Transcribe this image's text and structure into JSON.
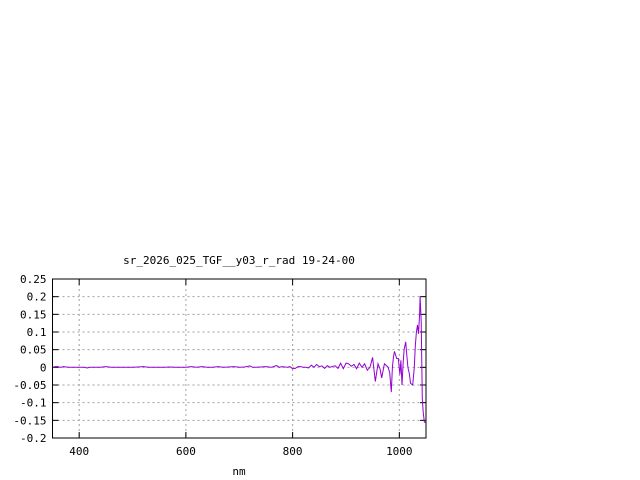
{
  "chart_data": {
    "type": "line",
    "title": "sr_2026_025_TGF__y03_r_rad 19-24-00",
    "xlabel": "nm",
    "ylabel": "",
    "xlim": [
      350,
      1050
    ],
    "ylim": [
      -0.2,
      0.25
    ],
    "xticks": [
      400,
      600,
      800,
      1000
    ],
    "xtick_labels": [
      "400",
      "600",
      "800",
      "1000"
    ],
    "yticks": [
      -0.2,
      -0.15,
      -0.1,
      -0.05,
      0,
      0.05,
      0.1,
      0.15,
      0.2,
      0.25
    ],
    "ytick_labels": [
      "-0.2",
      "-0.15",
      "-0.1",
      "-0.05",
      "0",
      "0.05",
      "0.1",
      "0.15",
      "0.2",
      "0.25"
    ],
    "grid": true,
    "legend": "none",
    "series": [
      {
        "color": "#9400d3",
        "x": [
          350,
          355,
          360,
          365,
          370,
          380,
          390,
          400,
          410,
          415,
          420,
          430,
          440,
          450,
          460,
          470,
          480,
          490,
          500,
          510,
          520,
          530,
          540,
          550,
          560,
          570,
          580,
          590,
          600,
          610,
          620,
          630,
          640,
          650,
          660,
          670,
          680,
          690,
          700,
          710,
          720,
          725,
          730,
          740,
          750,
          760,
          770,
          775,
          780,
          790,
          795,
          800,
          805,
          810,
          815,
          820,
          825,
          830,
          835,
          840,
          845,
          850,
          855,
          860,
          865,
          870,
          875,
          880,
          885,
          890,
          895,
          900,
          905,
          910,
          915,
          920,
          925,
          930,
          935,
          940,
          945,
          950,
          955,
          960,
          964,
          967,
          972,
          976,
          979,
          982,
          985,
          987,
          989,
          991,
          993,
          995,
          998,
          1001,
          1003,
          1005,
          1007,
          1009,
          1012,
          1014,
          1016,
          1019,
          1021,
          1025,
          1028,
          1030,
          1032,
          1034,
          1036,
          1038,
          1039,
          1041,
          1043,
          1045,
          1047,
          1050
        ],
        "y": [
          0.0,
          0.002,
          0.002,
          0.0,
          0.002,
          0.0,
          0.0,
          0.0,
          0.0,
          -0.002,
          0.0,
          0.0,
          0.0,
          0.002,
          0.0,
          0.0,
          0.0,
          0.0,
          0.0,
          0.001,
          0.002,
          0.0,
          0.0,
          0.0,
          0.0,
          0.001,
          0.0,
          0.0,
          0.0,
          0.002,
          0.0,
          0.002,
          0.0,
          0.0,
          0.002,
          0.0,
          0.001,
          0.002,
          0.0,
          0.001,
          0.004,
          0.0,
          0.0,
          0.001,
          0.002,
          0.0,
          0.005,
          0.0,
          0.002,
          0.0,
          0.002,
          -0.004,
          -0.003,
          0.002,
          0.002,
          0.0,
          0.0,
          -0.002,
          0.006,
          0.0,
          0.008,
          0.002,
          0.004,
          -0.003,
          0.005,
          0.0,
          0.003,
          0.004,
          -0.003,
          0.012,
          -0.004,
          0.012,
          0.01,
          0.003,
          0.008,
          -0.004,
          0.012,
          0.0,
          0.01,
          -0.008,
          0.0,
          0.028,
          -0.04,
          0.01,
          -0.005,
          -0.03,
          0.01,
          0.005,
          0.0,
          -0.015,
          -0.07,
          0.0,
          0.03,
          0.045,
          0.035,
          0.025,
          0.025,
          -0.02,
          0.02,
          -0.05,
          0.01,
          0.05,
          0.072,
          0.035,
          0.0,
          -0.02,
          -0.045,
          -0.05,
          0.0,
          0.06,
          0.1,
          0.12,
          0.095,
          0.15,
          0.2,
          0.13,
          -0.09,
          -0.13,
          -0.155,
          -0.155
        ]
      }
    ]
  }
}
